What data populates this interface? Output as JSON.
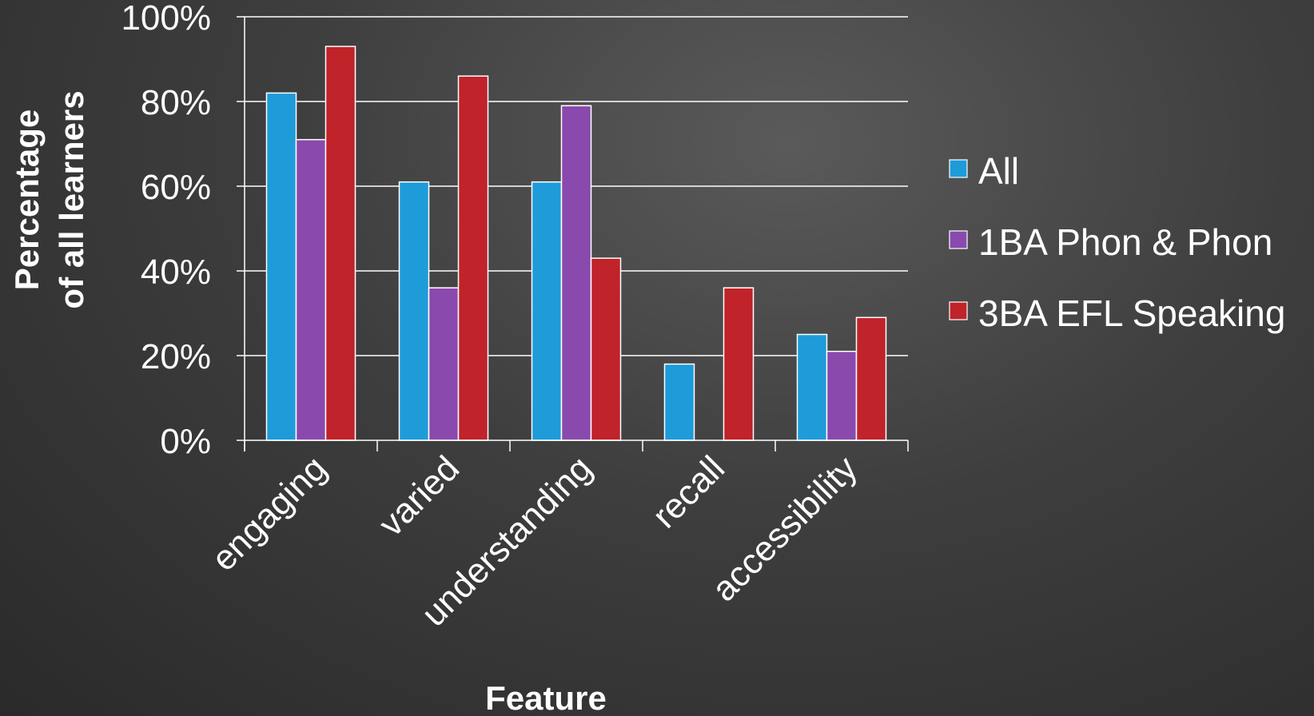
{
  "chart_data": {
    "type": "bar",
    "title": "",
    "xlabel": "Feature",
    "ylabel_lines": [
      "Percentage",
      "of all learners"
    ],
    "categories": [
      "engaging",
      "varied",
      "understanding",
      "recall",
      "accessibility"
    ],
    "series": [
      {
        "name": "All",
        "color": "#1e9bd9",
        "values": [
          82,
          61,
          61,
          18,
          25
        ]
      },
      {
        "name": "1BA Phon & Phon",
        "color": "#8a49ad",
        "values": [
          71,
          36,
          79,
          0,
          21
        ]
      },
      {
        "name": "3BA EFL Speaking",
        "color": "#c0232a",
        "values": [
          93,
          86,
          43,
          36,
          29
        ]
      }
    ],
    "yticks": [
      "0%",
      "20%",
      "40%",
      "60%",
      "80%",
      "100%"
    ],
    "ylim": [
      0,
      100
    ],
    "grid": true,
    "legend_position": "right"
  }
}
